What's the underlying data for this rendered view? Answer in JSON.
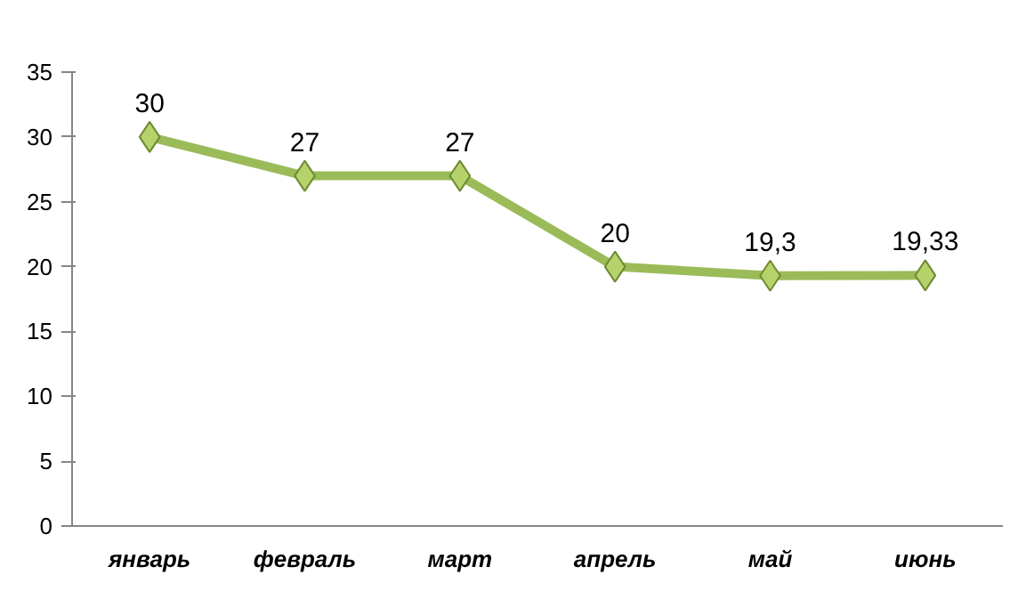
{
  "chart_data": {
    "type": "line",
    "categories": [
      "январь",
      "февраль",
      "март",
      "апрель",
      "май",
      "июнь"
    ],
    "series": [
      {
        "color": "#9bbb59",
        "values": [
          30,
          27,
          27,
          20,
          19.3,
          19.33
        ],
        "value_labels": [
          "30",
          "27",
          "27",
          "20",
          "19,3",
          "19,33"
        ]
      }
    ],
    "ylim": [
      0,
      35
    ],
    "yticks": [
      0,
      5,
      10,
      15,
      20,
      25,
      30,
      35
    ],
    "marker": "diamond",
    "grid": false
  }
}
